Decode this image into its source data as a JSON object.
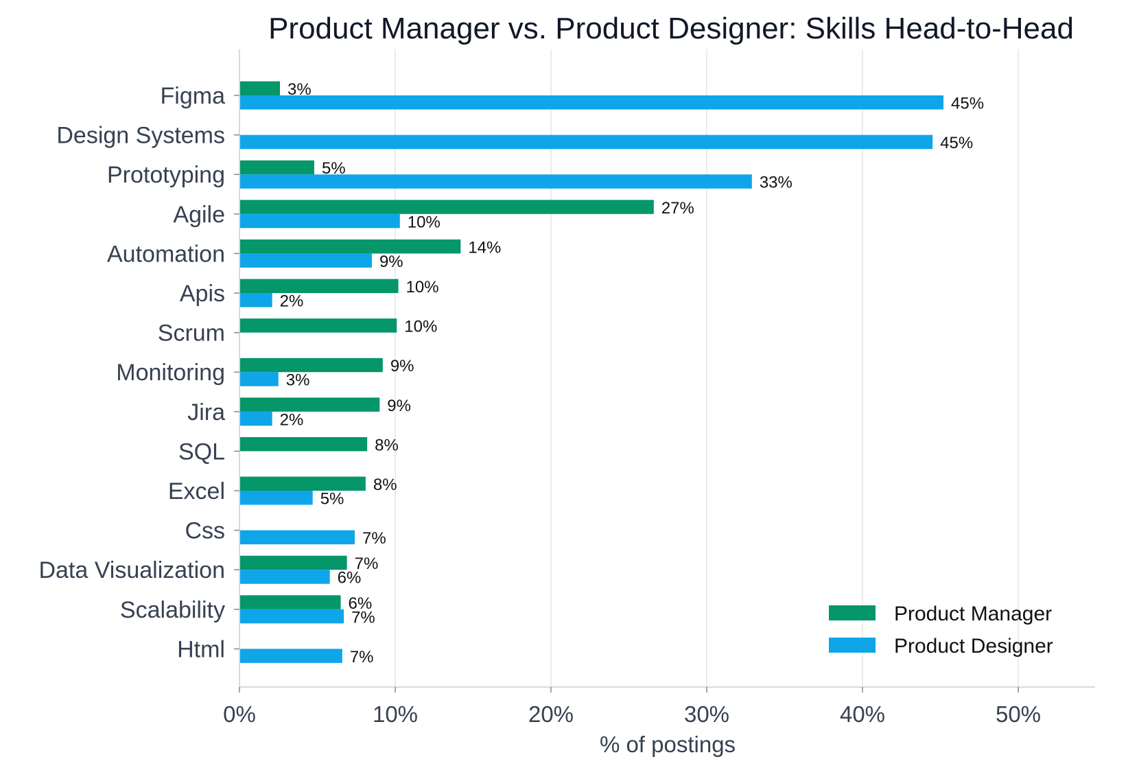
{
  "chart_data": {
    "type": "bar",
    "orientation": "horizontal",
    "title": "Product Manager vs. Product Designer: Skills Head-to-Head",
    "xlabel": "% of postings",
    "ylabel": "",
    "xlim": [
      0,
      55
    ],
    "xticks": [
      0,
      10,
      20,
      30,
      40,
      50
    ],
    "xtick_labels": [
      "0%",
      "10%",
      "20%",
      "30%",
      "40%",
      "50%"
    ],
    "grid": "vertical",
    "legend_position": "bottom-right",
    "categories": [
      "Figma",
      "Design Systems",
      "Prototyping",
      "Agile",
      "Automation",
      "Apis",
      "Scrum",
      "Monitoring",
      "Jira",
      "SQL",
      "Excel",
      "Css",
      "Data Visualization",
      "Scalability",
      "Html"
    ],
    "series": [
      {
        "name": "Product Manager",
        "color": "#059669",
        "values": [
          2.6,
          null,
          4.8,
          26.6,
          14.2,
          10.2,
          10.1,
          9.2,
          9.0,
          8.2,
          8.1,
          null,
          6.9,
          6.5,
          null
        ],
        "labels": [
          "3%",
          "",
          "5%",
          "27%",
          "14%",
          "10%",
          "10%",
          "9%",
          "9%",
          "8%",
          "8%",
          "",
          "7%",
          "6%",
          ""
        ]
      },
      {
        "name": "Product Designer",
        "color": "#0ea5e9",
        "values": [
          45.2,
          44.5,
          32.9,
          10.3,
          8.5,
          2.1,
          null,
          2.5,
          2.1,
          null,
          4.7,
          7.4,
          5.8,
          6.7,
          6.6
        ],
        "labels": [
          "45%",
          "45%",
          "33%",
          "10%",
          "9%",
          "2%",
          "",
          "3%",
          "2%",
          "",
          "5%",
          "7%",
          "6%",
          "7%",
          "7%"
        ]
      }
    ]
  }
}
